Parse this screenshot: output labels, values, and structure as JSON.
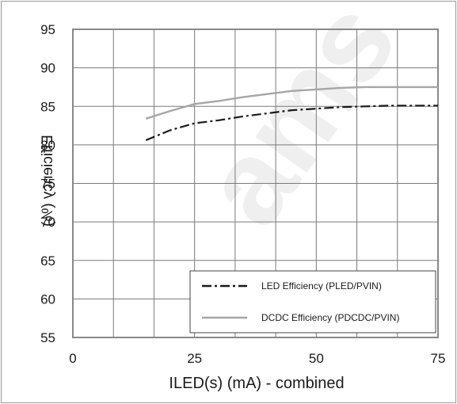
{
  "watermark": "ams",
  "chart_data": {
    "type": "line",
    "title": "",
    "xlabel": "ILED(s) (mA) - combined",
    "ylabel": "Efficiency (%)",
    "xlim": [
      0,
      75
    ],
    "ylim": [
      55,
      95
    ],
    "x_ticks": [
      "0",
      "25",
      "50",
      "75"
    ],
    "y_ticks": [
      "95",
      "90",
      "85",
      "80",
      "75",
      "70",
      "65",
      "60",
      "55"
    ],
    "grid": true,
    "legend_position": "bottom-right",
    "series": [
      {
        "name": "LED Efficiency (PLED/PVIN)",
        "style": "dash-dot",
        "color": "#1a1a1a",
        "x": [
          15,
          20,
          25,
          30,
          35,
          40,
          45,
          50,
          55,
          60,
          65,
          70,
          75
        ],
        "y": [
          80.6,
          81.9,
          82.8,
          83.2,
          83.7,
          84.1,
          84.5,
          84.7,
          84.9,
          85.0,
          85.1,
          85.1,
          85.1
        ]
      },
      {
        "name": "DCDC Efficiency (PDCDC/PVIN)",
        "style": "solid",
        "color": "#a6a6a6",
        "x": [
          15,
          20,
          25,
          30,
          35,
          40,
          45,
          50,
          55,
          60,
          65,
          70,
          75
        ],
        "y": [
          83.4,
          84.4,
          85.3,
          85.7,
          86.2,
          86.6,
          87.0,
          87.2,
          87.4,
          87.5,
          87.5,
          87.5,
          87.5
        ]
      }
    ]
  }
}
